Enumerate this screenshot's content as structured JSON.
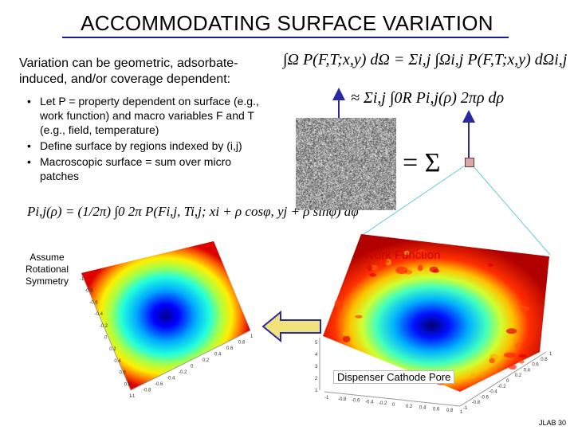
{
  "slide": {
    "title": "ACCOMMODATING SURFACE VARIATION",
    "intro": "Variation can be geometric, adsorbate-induced, and/or coverage dependent:",
    "bullets": [
      "Let P = property dependent on surface (e.g., work function) and macro variables F and T (e.g., field, temperature)",
      "Define surface by regions indexed by (i,j)",
      "Macroscopic surface = sum over micro patches"
    ],
    "equations": {
      "integral_sum": "∫Ω P(F,T;x,y) dΩ = Σi,j ∫Ωi,j P(F,T;x,y) dΩi,j",
      "approx_radial": "≈ Σi,j ∫0R Pi,j(ρ) 2πρ dρ",
      "local_average": "Pi,j(ρ) = (1/2π) ∫0 2π P(Fi,j, Ti,j; xi + ρ cosφ, yj + ρ sinφ) dφ",
      "equals_sum": "= Σ"
    },
    "side_note": "Assume Rotational Symmetry",
    "plot_labels": {
      "work_function": "Work Function",
      "dispenser_pore": "Dispenser Cathode Pore"
    },
    "footer": "JLAB 30"
  },
  "colors": {
    "title_rule": "#1a1aa0",
    "work_function_label": "#cc0000",
    "arrow_fill": "#f2e27a",
    "arrow_stroke": "#2a2aa0",
    "pointer_arrow": "#2a2aa0"
  },
  "plots": {
    "left_surface": {
      "x_ticks": [
        "-1",
        "-0.8",
        "-0.6",
        "-0.4",
        "-0.2",
        "0",
        "0.2",
        "0.4",
        "0.6",
        "0.8",
        "1"
      ],
      "y_ticks": [
        "-1",
        "-0.8",
        "-0.6",
        "-0.4",
        "-0.2",
        "0",
        "0.2",
        "0.4",
        "0.6",
        "0.8",
        "1"
      ]
    },
    "right_surface": {
      "x_ticks": [
        "-1",
        "-0.8",
        "-0.6",
        "-0.4",
        "-0.2",
        "0",
        "0.2",
        "0.4",
        "0.6",
        "0.8",
        "1"
      ],
      "y_ticks": [
        "-1",
        "-0.8",
        "-0.6",
        "-0.4",
        "-0.2",
        "0",
        "0.2",
        "0.4",
        "0.6",
        "0.8",
        "1"
      ],
      "z_ticks": [
        "1",
        "2",
        "3",
        "4",
        "5"
      ]
    }
  }
}
